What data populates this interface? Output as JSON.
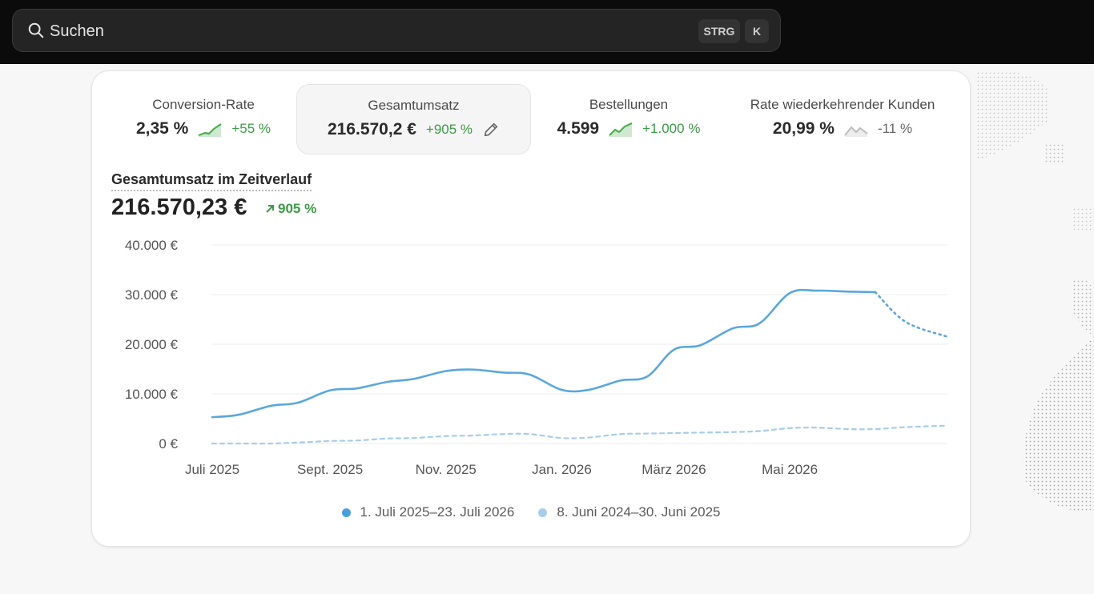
{
  "search": {
    "placeholder": "Suchen",
    "shortcut_keys": [
      "STRG",
      "K"
    ]
  },
  "metrics": [
    {
      "label": "Conversion-Rate",
      "value": "2,35 %",
      "change": "+55 %",
      "trend": "up"
    },
    {
      "label": "Gesamtumsatz",
      "value": "216.570,2 €",
      "change": "+905 %",
      "trend": "none",
      "active": true,
      "action_icon": "pencil-icon"
    },
    {
      "label": "Bestellungen",
      "value": "4.599",
      "change": "+1.000 %",
      "trend": "up"
    },
    {
      "label": "Rate wiederkehrender Kunden",
      "value": "20,99 %",
      "change": "-11 %",
      "trend": "neutral"
    }
  ],
  "chart": {
    "title": "Gesamtumsatz im Zeitverlauf",
    "total": "216.570,23 €",
    "change": "905 %"
  },
  "colors": {
    "primary_series": "#5aa7dc",
    "comparison_series": "#a6cdec",
    "positive": "#3d9a46"
  },
  "chart_data": {
    "type": "line",
    "ylim": [
      0,
      40000
    ],
    "y_ticks": [
      "0 €",
      "10.000 €",
      "20.000 €",
      "30.000 €",
      "40.000 €"
    ],
    "x_tick_labels": [
      "Juli 2025",
      "Sept. 2025",
      "Nov. 2025",
      "Jan. 2026",
      "März 2026",
      "Mai 2026"
    ],
    "grid": true,
    "legend_position": "bottom",
    "series": [
      {
        "name": "1. Juli 2025–23. Juli 2026",
        "x": [
          "2025-07-01",
          "2025-07-15",
          "2025-08-01",
          "2025-08-15",
          "2025-09-01",
          "2025-09-15",
          "2025-10-01",
          "2025-10-15",
          "2025-11-01",
          "2025-11-15",
          "2025-12-01",
          "2025-12-15",
          "2026-01-01",
          "2026-01-15",
          "2026-02-01",
          "2026-02-15",
          "2026-03-01",
          "2026-03-15",
          "2026-04-01",
          "2026-04-15",
          "2026-05-01",
          "2026-05-15",
          "2026-06-01",
          "2026-06-15",
          "2026-07-01",
          "2026-07-23"
        ],
        "values": [
          5300,
          5800,
          7600,
          8200,
          10700,
          11100,
          12400,
          13000,
          14600,
          14900,
          14300,
          13900,
          10800,
          10800,
          12700,
          13500,
          18900,
          19800,
          23200,
          24200,
          30300,
          30800,
          30600,
          30500,
          24500,
          21500
        ]
      },
      {
        "name": "8. Juni 2024–30. Juni 2025",
        "x": [
          "2025-07-01",
          "2025-07-15",
          "2025-08-01",
          "2025-08-15",
          "2025-09-01",
          "2025-09-15",
          "2025-10-01",
          "2025-10-15",
          "2025-11-01",
          "2025-11-15",
          "2025-12-01",
          "2025-12-15",
          "2026-01-01",
          "2026-01-15",
          "2026-02-01",
          "2026-02-15",
          "2026-03-01",
          "2026-03-15",
          "2026-04-01",
          "2026-04-15",
          "2026-05-01",
          "2026-05-15",
          "2026-06-01",
          "2026-06-15",
          "2026-07-01",
          "2026-07-23"
        ],
        "values": [
          0,
          0,
          0,
          200,
          500,
          600,
          1000,
          1100,
          1500,
          1600,
          1900,
          1900,
          1100,
          1200,
          1900,
          2000,
          2100,
          2200,
          2300,
          2500,
          3100,
          3200,
          2900,
          2900,
          3300,
          3600
        ]
      }
    ]
  }
}
